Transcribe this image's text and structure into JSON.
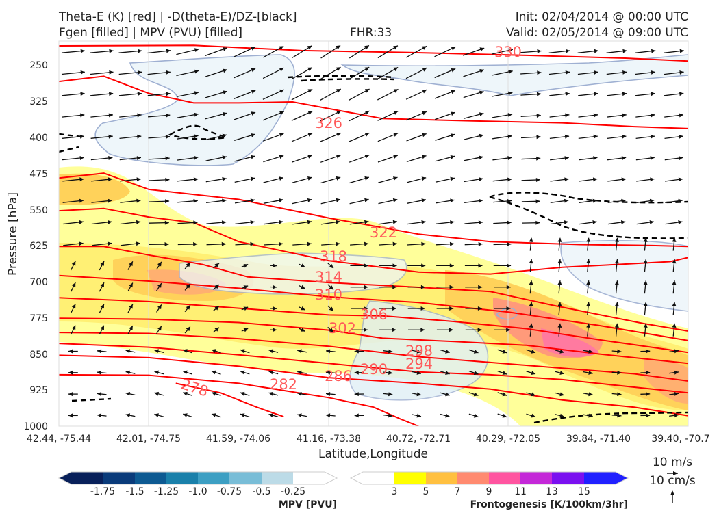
{
  "header": {
    "title_left_1": "Theta-E (K) [red] | -D(theta-E)/DZ-[black]",
    "title_left_2": "Fgen [filled] | MPV (PVU) [filled]",
    "fhr": "FHR:33",
    "init": "Init: 02/04/2014 @ 00:00 UTC",
    "valid": "Valid: 02/05/2014 @ 09:00 UTC"
  },
  "colors": {
    "theta_e": "#ff0000",
    "label": "#ff5a5a",
    "stability": "#000000",
    "mpv_outline": "#9fb0d2",
    "mpv_fill": "#eef6fa"
  },
  "chart_data": {
    "type": "cross-section",
    "xlabel": "Latitude,Longitude",
    "ylabel": "Pressure [hPa]",
    "x_ticks": [
      "42.44, -75.44",
      "42.01, -74.75",
      "41.59, -74.06",
      "41.16, -73.38",
      "40.72, -72.71",
      "40.29, -72.05",
      "39.84, -71.40",
      "39.40, -70.7"
    ],
    "y_ticks": [
      "250",
      "325",
      "400",
      "475",
      "550",
      "625",
      "700",
      "775",
      "850",
      "925",
      "1000"
    ],
    "ylim": [
      1000,
      190
    ],
    "y_reversed": true,
    "theta_e_contours": [
      {
        "level": 330,
        "label": "330",
        "points": [
          [
            0,
            200
          ],
          [
            1.5,
            199
          ],
          [
            2.7,
            210
          ],
          [
            3.9,
            214
          ],
          [
            5.2,
            220
          ],
          [
            6.3,
            226
          ],
          [
            7,
            232
          ]
        ]
      },
      {
        "level": 326,
        "label": "326",
        "points": [
          [
            0,
            275
          ],
          [
            0.5,
            264
          ],
          [
            1,
            300
          ],
          [
            1.5,
            320
          ],
          [
            2,
            320
          ],
          [
            2.6,
            318
          ],
          [
            3.6,
            353
          ],
          [
            4.6,
            358
          ],
          [
            5.6,
            362
          ],
          [
            6.4,
            370
          ],
          [
            7,
            374
          ]
        ]
      },
      {
        "level": 322,
        "label": "322",
        "points": [
          [
            0,
            478
          ],
          [
            0.5,
            468
          ],
          [
            1,
            502
          ],
          [
            2,
            523
          ],
          [
            3,
            562
          ],
          [
            4,
            596
          ],
          [
            4.8,
            612
          ],
          [
            5.8,
            618
          ],
          [
            6.6,
            620
          ],
          [
            7,
            622
          ]
        ]
      },
      {
        "level": 318,
        "label": "318",
        "points": [
          [
            0,
            547
          ],
          [
            0.5,
            542
          ],
          [
            1,
            560
          ],
          [
            1.5,
            572
          ],
          [
            2,
            612
          ],
          [
            3,
            652
          ],
          [
            4,
            676
          ],
          [
            4.8,
            680
          ],
          [
            5.6,
            666
          ],
          [
            6.2,
            660
          ],
          [
            6.8,
            654
          ],
          [
            7,
            645
          ]
        ]
      },
      {
        "level": 314,
        "label": "314",
        "points": [
          [
            0,
            622
          ],
          [
            0.5,
            622
          ],
          [
            1,
            640
          ],
          [
            1.6,
            660
          ],
          [
            2.1,
            686
          ],
          [
            3,
            698
          ],
          [
            4,
            708
          ],
          [
            4.8,
            717
          ],
          [
            5.5,
            746
          ],
          [
            6.5,
            784
          ],
          [
            7,
            800
          ]
        ]
      },
      {
        "level": 310,
        "label": "310",
        "points": [
          [
            0,
            683
          ],
          [
            1,
            695
          ],
          [
            2,
            710
          ],
          [
            3,
            728
          ],
          [
            4,
            740
          ],
          [
            5,
            760
          ],
          [
            6,
            788
          ],
          [
            7,
            820
          ]
        ]
      },
      {
        "level": 306,
        "label": "306",
        "points": [
          [
            0,
            730
          ],
          [
            1,
            738
          ],
          [
            2,
            752
          ],
          [
            3,
            766
          ],
          [
            3.6,
            768
          ],
          [
            4.4,
            780
          ],
          [
            5.2,
            795
          ],
          [
            6,
            818
          ],
          [
            7,
            845
          ]
        ]
      },
      {
        "level": 302,
        "label": "302",
        "points": [
          [
            0,
            773
          ],
          [
            1,
            775
          ],
          [
            2,
            782
          ],
          [
            3,
            798
          ],
          [
            3.6,
            815
          ],
          [
            4.4,
            822
          ],
          [
            5.2,
            830
          ],
          [
            6,
            848
          ],
          [
            7,
            868
          ]
        ]
      },
      {
        "level": 298,
        "label": "298",
        "points": [
          [
            0,
            803
          ],
          [
            1,
            805
          ],
          [
            2,
            816
          ],
          [
            3,
            832
          ],
          [
            4,
            854
          ],
          [
            4.8,
            866
          ],
          [
            5.6,
            878
          ],
          [
            6.4,
            890
          ],
          [
            7,
            905
          ]
        ]
      },
      {
        "level": 294,
        "label": "294",
        "points": [
          [
            0,
            826
          ],
          [
            1,
            834
          ],
          [
            2,
            850
          ],
          [
            3,
            868
          ],
          [
            4,
            886
          ],
          [
            4.8,
            892
          ],
          [
            5.6,
            902
          ],
          [
            6.4,
            918
          ],
          [
            7,
            930
          ]
        ]
      },
      {
        "level": 290,
        "label": "290",
        "points": [
          [
            0,
            851
          ],
          [
            1,
            856
          ],
          [
            2,
            874
          ],
          [
            3,
            898
          ],
          [
            4,
            910
          ],
          [
            4.8,
            922
          ],
          [
            5.6,
            945
          ],
          [
            6.4,
            960
          ],
          [
            7,
            978
          ]
        ]
      },
      {
        "level": 286,
        "label": "286",
        "points": [
          [
            0,
            892
          ],
          [
            1,
            893
          ],
          [
            2,
            910
          ],
          [
            3,
            940
          ],
          [
            3.5,
            960
          ],
          [
            3.8,
            985
          ],
          [
            4,
            1000
          ]
        ]
      },
      {
        "level": 282,
        "label": "282",
        "points": [
          [
            1.3,
            910
          ],
          [
            1.8,
            930
          ],
          [
            2.2,
            960
          ],
          [
            2.5,
            980
          ]
        ]
      },
      {
        "level": 278,
        "label": "278",
        "points": []
      }
    ],
    "wind_vectors_approx_count": 300,
    "mpv_colorbar": {
      "title": "MPV [PVU]",
      "ticks": [
        "-1.75",
        "-1.5",
        "-1.25",
        "-1.0",
        "-0.75",
        "-0.5",
        "-0.25"
      ]
    },
    "fgen_colorbar": {
      "title": "Frontogenesis [K/100km/3hr]",
      "ticks": [
        "3",
        "5",
        "7",
        "9",
        "11",
        "13",
        "15"
      ]
    },
    "quiver_key": {
      "horizontal": "10 m/s",
      "vertical": "10 cm/s"
    }
  }
}
